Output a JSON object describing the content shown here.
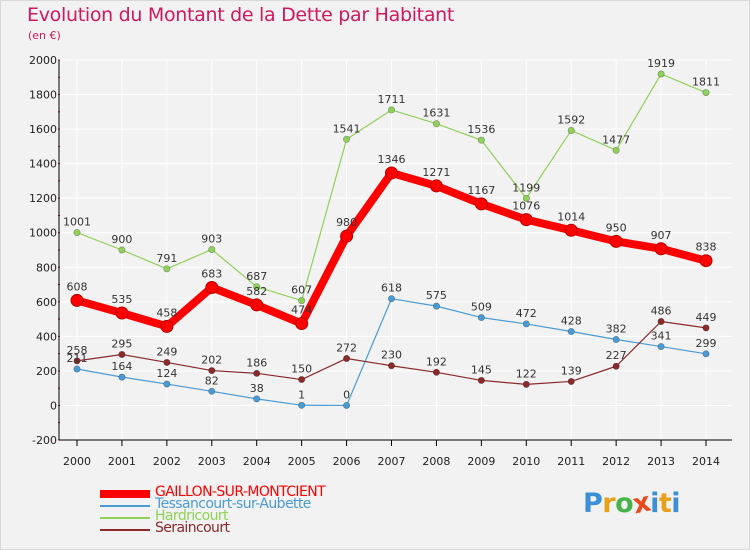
{
  "header": {
    "title": "Evolution du Montant de la Dette par Habitant",
    "unit": "(en €)"
  },
  "logo": {
    "text": "Proxiti",
    "letter_colors": [
      "#3a8fd6",
      "#e8a21a",
      "#47b34a",
      "#e84b1c",
      "#3a8fd6",
      "#e8a21a"
    ],
    "icon": "proxiti-logo"
  },
  "colors": {
    "background": "#f2f2f2",
    "grid": "#ffffff",
    "axis": "#000000",
    "tick_marks": "#d1185e",
    "title": "#d1185e"
  },
  "chart_data": {
    "type": "line",
    "title": "Evolution du Montant de la Dette par Habitant",
    "ylabel": "(en €)",
    "xlabel": "",
    "x": [
      "2000",
      "2001",
      "2002",
      "2003",
      "2004",
      "2005",
      "2006",
      "2007",
      "2008",
      "2009",
      "2010",
      "2011",
      "2012",
      "2013",
      "2014"
    ],
    "ylim": [
      -200,
      2000
    ],
    "yticks": [
      "-200",
      "0",
      "200",
      "400",
      "600",
      "800",
      "1000",
      "1200",
      "1400",
      "1600",
      "1800",
      "2000"
    ],
    "grid": true,
    "legend_position": "bottom-left",
    "series": [
      {
        "name": "GAILLON-SUR-MONTCIENT",
        "color": "#ff0000",
        "emphasis": "thick",
        "values": [
          608,
          535,
          458,
          683,
          582,
          474,
          980,
          1346,
          1271,
          1167,
          1076,
          1014,
          950,
          907,
          838
        ],
        "labels": [
          "608",
          "535",
          "458",
          "683",
          "582",
          "474",
          "980",
          "1346",
          "1271",
          "1167",
          "1076",
          "1014",
          "950",
          "907",
          "838"
        ]
      },
      {
        "name": "Tessancourt-sur-Aubette",
        "color": "#4a9bd4",
        "values": [
          211,
          164,
          124,
          82,
          38,
          1,
          0,
          618,
          575,
          509,
          472,
          428,
          382,
          341,
          299
        ],
        "labels": [
          "211",
          "164",
          "124",
          "82",
          "38",
          "1",
          "0",
          "618",
          "575",
          "509",
          "472",
          "428",
          "382",
          "341",
          "299"
        ]
      },
      {
        "name": "Hardricourt",
        "color": "#8fd15a",
        "values": [
          1001,
          900,
          791,
          903,
          687,
          607,
          1541,
          1711,
          1631,
          1536,
          1199,
          1592,
          1477,
          1919,
          1811
        ],
        "labels": [
          "1001",
          "900",
          "791",
          "903",
          "687",
          "607",
          "1541",
          "1711",
          "1631",
          "1536",
          "1199",
          "1592",
          "1477",
          "1919",
          "1811"
        ]
      },
      {
        "name": "Seraincourt",
        "color": "#8a2a2a",
        "values": [
          258,
          295,
          249,
          202,
          186,
          150,
          272,
          230,
          192,
          145,
          122,
          139,
          227,
          486,
          449
        ],
        "labels": [
          "258",
          "295",
          "249",
          "202",
          "186",
          "150",
          "272",
          "230",
          "192",
          "145",
          "122",
          "139",
          "227",
          "486",
          "449"
        ]
      }
    ]
  }
}
